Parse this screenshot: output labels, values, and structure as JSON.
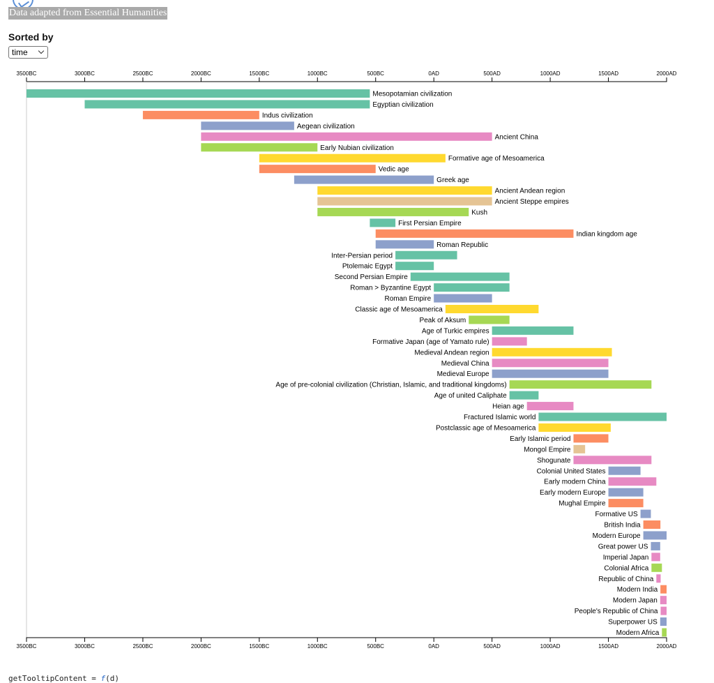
{
  "source_note": "Data adapted from Essential Humanities",
  "sort": {
    "label": "Sorted by",
    "selected": "time"
  },
  "code": {
    "prefix": "getTooltipContent = ",
    "fn": "f",
    "suffix": "(d)"
  },
  "colors": {
    "green": "#66c2a5",
    "orange": "#fc8d62",
    "blue": "#8da0cb",
    "pink": "#e78ac3",
    "lime": "#a6d854",
    "yellow": "#ffd92f",
    "tan": "#e5c494"
  },
  "chart_data": {
    "type": "bar",
    "subtype": "timeline",
    "x_unit": "year",
    "xlim": [
      -3500,
      2000
    ],
    "x_ticks": [
      -3500,
      -3000,
      -2500,
      -2000,
      -1500,
      -1000,
      -500,
      0,
      500,
      1000,
      1500,
      2000
    ],
    "x_tick_labels": [
      "3500BC",
      "3000BC",
      "2500BC",
      "2000BC",
      "1500BC",
      "1000BC",
      "500BC",
      "0AD",
      "500AD",
      "1000AD",
      "1500AD",
      "2000AD"
    ],
    "axes": [
      "top",
      "bottom"
    ],
    "bars": [
      {
        "label": "Mesopotamian civilization",
        "start": -3500,
        "end": -550,
        "color": "green"
      },
      {
        "label": "Egyptian civilization",
        "start": -3000,
        "end": -550,
        "color": "green"
      },
      {
        "label": "Indus civilization",
        "start": -2500,
        "end": -1500,
        "color": "orange"
      },
      {
        "label": "Aegean civilization",
        "start": -2000,
        "end": -1200,
        "color": "blue"
      },
      {
        "label": "Ancient China",
        "start": -2000,
        "end": 500,
        "color": "pink"
      },
      {
        "label": "Early Nubian civilization",
        "start": -2000,
        "end": -1000,
        "color": "lime"
      },
      {
        "label": "Formative age of Mesoamerica",
        "start": -1500,
        "end": 100,
        "color": "yellow"
      },
      {
        "label": "Vedic age",
        "start": -1500,
        "end": -500,
        "color": "orange"
      },
      {
        "label": "Greek age",
        "start": -1200,
        "end": 0,
        "color": "blue"
      },
      {
        "label": "Ancient Andean region",
        "start": -1000,
        "end": 500,
        "color": "yellow"
      },
      {
        "label": "Ancient Steppe empires",
        "start": -1000,
        "end": 500,
        "color": "tan"
      },
      {
        "label": "Kush",
        "start": -1000,
        "end": 300,
        "color": "lime"
      },
      {
        "label": "First Persian Empire",
        "start": -550,
        "end": -330,
        "color": "green"
      },
      {
        "label": "Indian kingdom age",
        "start": -500,
        "end": 1200,
        "color": "orange"
      },
      {
        "label": "Roman Republic",
        "start": -500,
        "end": 0,
        "color": "blue"
      },
      {
        "label": "Inter-Persian period",
        "start": -330,
        "end": 200,
        "color": "green"
      },
      {
        "label": "Ptolemaic Egypt",
        "start": -330,
        "end": 0,
        "color": "green"
      },
      {
        "label": "Second Persian Empire",
        "start": -200,
        "end": 650,
        "color": "green"
      },
      {
        "label": "Roman > Byzantine Egypt",
        "start": 0,
        "end": 650,
        "color": "green"
      },
      {
        "label": "Roman Empire",
        "start": 0,
        "end": 500,
        "color": "blue"
      },
      {
        "label": "Classic age of Mesoamerica",
        "start": 100,
        "end": 900,
        "color": "yellow"
      },
      {
        "label": "Peak of Aksum",
        "start": 300,
        "end": 650,
        "color": "lime"
      },
      {
        "label": "Age of Turkic empires",
        "start": 500,
        "end": 1200,
        "color": "green"
      },
      {
        "label": "Formative Japan (age of Yamato rule)",
        "start": 500,
        "end": 800,
        "color": "pink"
      },
      {
        "label": "Medieval Andean region",
        "start": 500,
        "end": 1530,
        "color": "yellow"
      },
      {
        "label": "Medieval China",
        "start": 500,
        "end": 1500,
        "color": "pink"
      },
      {
        "label": "Medieval Europe",
        "start": 500,
        "end": 1500,
        "color": "blue"
      },
      {
        "label": "Age of pre-colonial civilization (Christian, Islamic, and traditional kingdoms)",
        "start": 650,
        "end": 1870,
        "color": "lime"
      },
      {
        "label": "Age of united Caliphate",
        "start": 650,
        "end": 900,
        "color": "green"
      },
      {
        "label": "Heian age",
        "start": 800,
        "end": 1200,
        "color": "pink"
      },
      {
        "label": "Fractured Islamic world",
        "start": 900,
        "end": 2000,
        "color": "green"
      },
      {
        "label": "Postclassic age of Mesoamerica",
        "start": 900,
        "end": 1520,
        "color": "yellow"
      },
      {
        "label": "Early Islamic period",
        "start": 1200,
        "end": 1500,
        "color": "orange"
      },
      {
        "label": "Mongol Empire",
        "start": 1200,
        "end": 1300,
        "color": "tan"
      },
      {
        "label": "Shogunate",
        "start": 1200,
        "end": 1870,
        "color": "pink"
      },
      {
        "label": "Colonial United States",
        "start": 1500,
        "end": 1776,
        "color": "blue"
      },
      {
        "label": "Early modern China",
        "start": 1500,
        "end": 1912,
        "color": "pink"
      },
      {
        "label": "Early modern Europe",
        "start": 1500,
        "end": 1800,
        "color": "blue"
      },
      {
        "label": "Mughal Empire",
        "start": 1500,
        "end": 1800,
        "color": "orange"
      },
      {
        "label": "Formative US",
        "start": 1776,
        "end": 1865,
        "color": "blue"
      },
      {
        "label": "British India",
        "start": 1800,
        "end": 1947,
        "color": "orange"
      },
      {
        "label": "Modern Europe",
        "start": 1800,
        "end": 2000,
        "color": "blue"
      },
      {
        "label": "Great power US",
        "start": 1865,
        "end": 1945,
        "color": "blue"
      },
      {
        "label": "Imperial Japan",
        "start": 1870,
        "end": 1945,
        "color": "pink"
      },
      {
        "label": "Colonial Africa",
        "start": 1870,
        "end": 1960,
        "color": "lime"
      },
      {
        "label": "Republic of China",
        "start": 1912,
        "end": 1949,
        "color": "pink"
      },
      {
        "label": "Modern India",
        "start": 1947,
        "end": 2000,
        "color": "orange"
      },
      {
        "label": "Modern Japan",
        "start": 1945,
        "end": 2000,
        "color": "pink"
      },
      {
        "label": "People's Republic of China",
        "start": 1949,
        "end": 2000,
        "color": "pink"
      },
      {
        "label": "Superpower US",
        "start": 1945,
        "end": 2000,
        "color": "blue"
      },
      {
        "label": "Modern Africa",
        "start": 1960,
        "end": 2000,
        "color": "lime"
      }
    ]
  }
}
